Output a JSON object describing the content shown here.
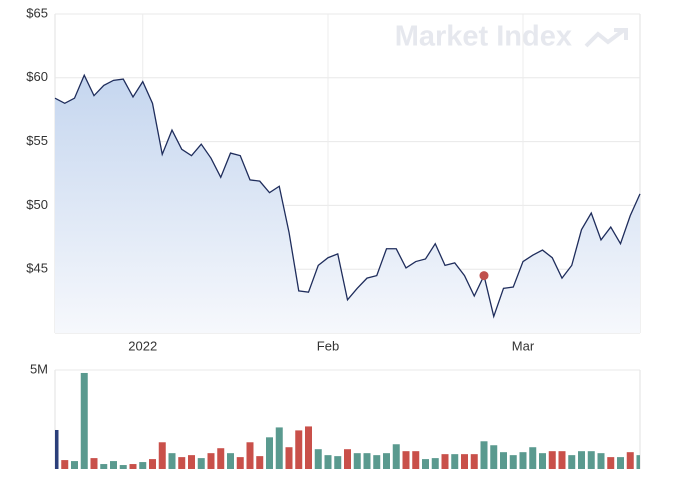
{
  "chart_data": [
    {
      "type": "area",
      "watermark": "Market Index",
      "categories": [
        null,
        null,
        null,
        null,
        null,
        null,
        null,
        null,
        null,
        "2022",
        null,
        null,
        null,
        null,
        null,
        null,
        null,
        null,
        null,
        null,
        null,
        null,
        null,
        null,
        null,
        null,
        null,
        null,
        "Feb",
        null,
        null,
        null,
        null,
        null,
        null,
        null,
        null,
        null,
        null,
        null,
        null,
        null,
        null,
        null,
        null,
        null,
        null,
        null,
        "Mar",
        null,
        null,
        null,
        null,
        null,
        null,
        null,
        null,
        null,
        null,
        null,
        null
      ],
      "series": [
        {
          "color": "#1f2d5c",
          "values": [
            58.4,
            58.0,
            58.4,
            60.2,
            58.6,
            59.4,
            59.8,
            59.9,
            58.5,
            59.7,
            58.0,
            54.0,
            55.9,
            54.4,
            53.9,
            54.8,
            53.7,
            52.2,
            54.1,
            53.9,
            52.0,
            51.9,
            51.0,
            51.5,
            47.9,
            43.3,
            43.2,
            45.3,
            45.9,
            46.2,
            42.6,
            43.5,
            44.3,
            44.5,
            46.6,
            46.6,
            45.1,
            45.6,
            45.8,
            47.0,
            45.3,
            45.5,
            44.5,
            42.9,
            44.5,
            41.3,
            43.5,
            43.6,
            45.6,
            46.1,
            46.5,
            45.9,
            44.3,
            45.3,
            48.1,
            49.4,
            47.3,
            48.3,
            47.0,
            49.2,
            50.9
          ]
        }
      ],
      "marker_index": 44,
      "marker_color": "#c0504d",
      "ylim": [
        40,
        65
      ],
      "yticks": [
        {
          "value": 45,
          "label": "$45"
        },
        {
          "value": 50,
          "label": "$50"
        },
        {
          "value": 55,
          "label": "$55"
        },
        {
          "value": 60,
          "label": "$60"
        },
        {
          "value": 65,
          "label": "$65"
        }
      ],
      "grid": true
    },
    {
      "type": "bar",
      "values": [
        1970000,
        450000,
        400000,
        4850000,
        550000,
        250000,
        400000,
        200000,
        250000,
        350000,
        500000,
        1350000,
        800000,
        600000,
        700000,
        550000,
        800000,
        1050000,
        800000,
        600000,
        1350000,
        650000,
        1600000,
        2100000,
        1100000,
        1950000,
        2150000,
        1000000,
        700000,
        650000,
        1000000,
        800000,
        800000,
        700000,
        800000,
        1250000,
        900000,
        900000,
        500000,
        550000,
        750000,
        750000,
        750000,
        750000,
        1400000,
        1200000,
        850000,
        700000,
        850000,
        1100000,
        800000,
        900000,
        900000,
        700000,
        900000,
        900000,
        800000,
        600000,
        600000,
        850000,
        700000
      ],
      "colors": [
        "#2b3f7a",
        "#c9504a",
        "#5a9a8f",
        "#5a9a8f",
        "#c9504a",
        "#5a9a8f",
        "#5a9a8f",
        "#5a9a8f",
        "#c9504a",
        "#5a9a8f",
        "#c9504a",
        "#c9504a",
        "#5a9a8f",
        "#c9504a",
        "#c9504a",
        "#5a9a8f",
        "#c9504a",
        "#c9504a",
        "#5a9a8f",
        "#c9504a",
        "#c9504a",
        "#c9504a",
        "#5a9a8f",
        "#5a9a8f",
        "#c9504a",
        "#c9504a",
        "#c9504a",
        "#5a9a8f",
        "#5a9a8f",
        "#5a9a8f",
        "#c9504a",
        "#5a9a8f",
        "#5a9a8f",
        "#5a9a8f",
        "#5a9a8f",
        "#5a9a8f",
        "#c9504a",
        "#c9504a",
        "#5a9a8f",
        "#5a9a8f",
        "#c9504a",
        "#5a9a8f",
        "#c9504a",
        "#c9504a",
        "#5a9a8f",
        "#5a9a8f",
        "#5a9a8f",
        "#5a9a8f",
        "#5a9a8f",
        "#5a9a8f",
        "#5a9a8f",
        "#c9504a",
        "#c9504a",
        "#5a9a8f",
        "#5a9a8f",
        "#5a9a8f",
        "#5a9a8f",
        "#c9504a",
        "#5a9a8f",
        "#c9504a",
        "#5a9a8f"
      ],
      "ylim": [
        0,
        5000000
      ],
      "yticks": [
        {
          "value": 5000000,
          "label": "5M"
        }
      ],
      "grid": true
    }
  ]
}
